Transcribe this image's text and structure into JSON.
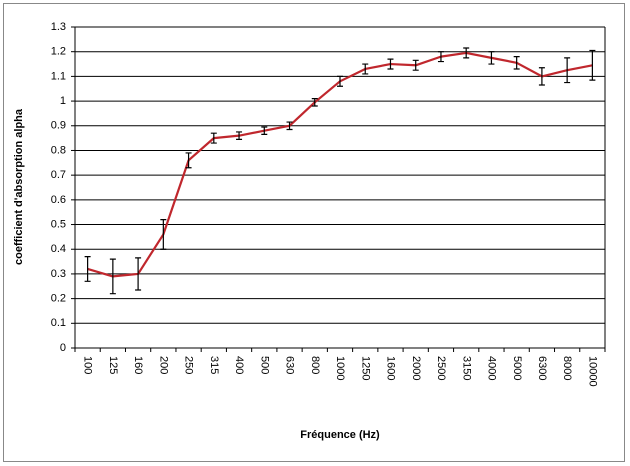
{
  "chart_data": {
    "type": "line",
    "y_label": "coefficient d'absorption alpha",
    "x_label": "Fréquence (Hz)",
    "categories": [
      "100",
      "125",
      "160",
      "200",
      "250",
      "315",
      "400",
      "500",
      "630",
      "800",
      "1000",
      "1250",
      "1600",
      "2000",
      "2500",
      "3150",
      "4000",
      "5000",
      "6300",
      "8000",
      "10000"
    ],
    "values": [
      0.32,
      0.29,
      0.3,
      0.46,
      0.76,
      0.85,
      0.86,
      0.88,
      0.9,
      0.995,
      1.08,
      1.13,
      1.15,
      1.145,
      1.18,
      1.195,
      1.175,
      1.155,
      1.1,
      1.125,
      1.145
    ],
    "errors": [
      0.05,
      0.07,
      0.065,
      0.06,
      0.03,
      0.02,
      0.015,
      0.015,
      0.015,
      0.015,
      0.02,
      0.02,
      0.02,
      0.02,
      0.02,
      0.02,
      0.025,
      0.025,
      0.035,
      0.05,
      0.06
    ],
    "color": "#c0272d",
    "ylim": [
      0,
      1.3
    ],
    "yticks": [
      0,
      0.1,
      0.2,
      0.3,
      0.4,
      0.5,
      0.6,
      0.7,
      0.8,
      0.9,
      1,
      1.1,
      1.2,
      1.3
    ],
    "grid": true
  }
}
